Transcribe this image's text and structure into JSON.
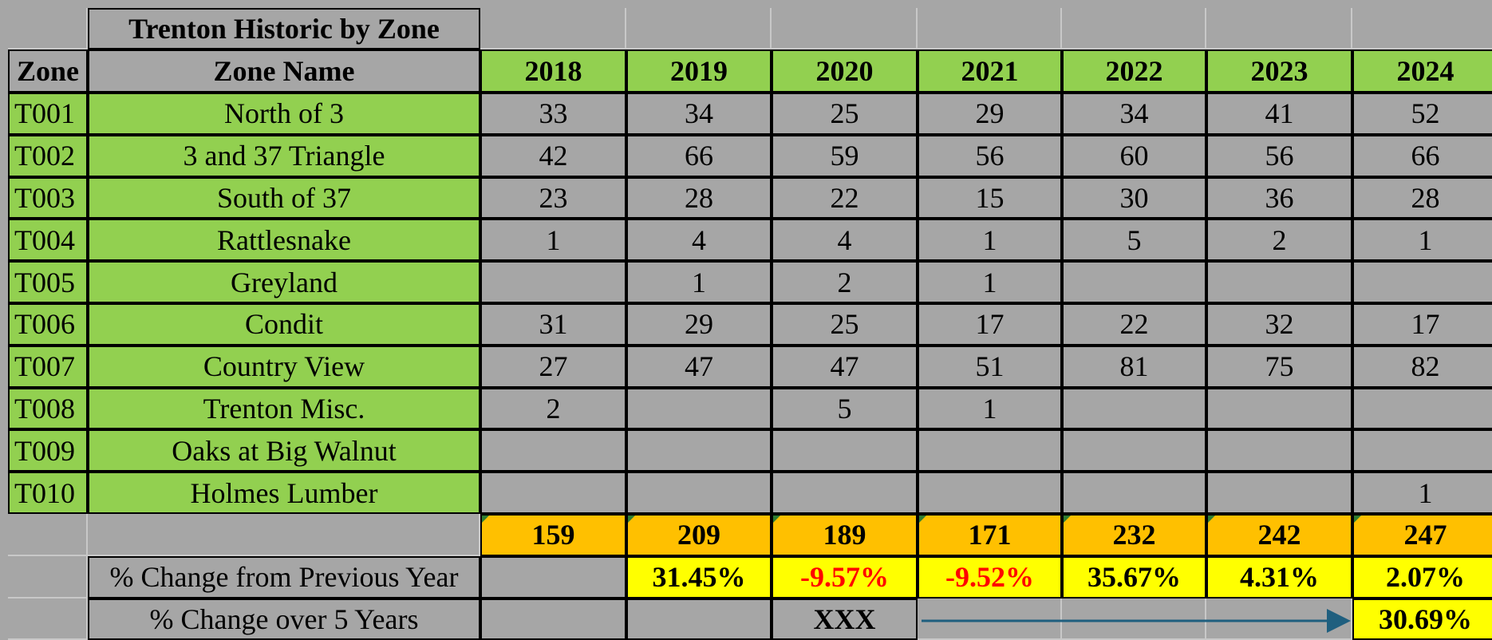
{
  "header": {
    "title": "Trenton Historic by Zone",
    "zone": "Zone",
    "zone_name": "Zone Name",
    "years": [
      "2018",
      "2019",
      "2020",
      "2021",
      "2022",
      "2023",
      "2024"
    ]
  },
  "rows": [
    {
      "zone": "T001",
      "name": "North of 3",
      "values": [
        33,
        34,
        25,
        29,
        34,
        41,
        52
      ]
    },
    {
      "zone": "T002",
      "name": "3 and 37 Triangle",
      "values": [
        42,
        66,
        59,
        56,
        60,
        56,
        66
      ]
    },
    {
      "zone": "T003",
      "name": "South of 37",
      "values": [
        23,
        28,
        22,
        15,
        30,
        36,
        28
      ]
    },
    {
      "zone": "T004",
      "name": "Rattlesnake",
      "values": [
        1,
        4,
        4,
        1,
        5,
        2,
        1
      ]
    },
    {
      "zone": "T005",
      "name": "Greyland",
      "values": [
        null,
        1,
        2,
        1,
        null,
        null,
        null
      ]
    },
    {
      "zone": "T006",
      "name": "Condit",
      "values": [
        31,
        29,
        25,
        17,
        22,
        32,
        17
      ]
    },
    {
      "zone": "T007",
      "name": "Country View",
      "values": [
        27,
        47,
        47,
        51,
        81,
        75,
        82
      ]
    },
    {
      "zone": "T008",
      "name": "Trenton Misc.",
      "values": [
        2,
        null,
        5,
        1,
        null,
        null,
        null
      ]
    },
    {
      "zone": "T009",
      "name": "Oaks at Big Walnut",
      "values": [
        null,
        null,
        null,
        null,
        null,
        null,
        null
      ]
    },
    {
      "zone": "T010",
      "name": "Holmes Lumber",
      "values": [
        null,
        null,
        null,
        null,
        null,
        null,
        1
      ]
    }
  ],
  "totals": [
    159,
    209,
    189,
    171,
    232,
    242,
    247
  ],
  "pct_change": {
    "label": "% Change from Previous Year",
    "values": [
      null,
      "31.45%",
      "-9.57%",
      "-9.52%",
      "35.67%",
      "4.31%",
      "2.07%"
    ]
  },
  "five_year": {
    "label": "% Change over 5 Years",
    "values": [
      null,
      null,
      "XXX",
      null,
      null,
      null,
      "30.69%"
    ]
  }
}
